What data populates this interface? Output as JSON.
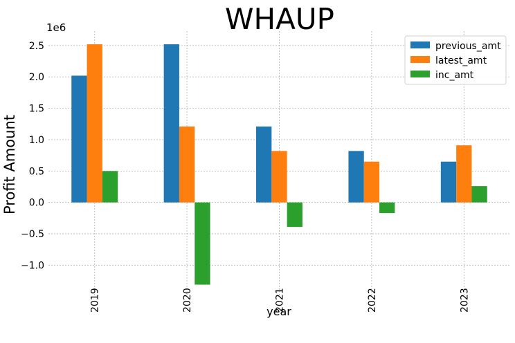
{
  "chart_data": {
    "type": "bar",
    "title": "WHAUP",
    "xlabel": "year",
    "ylabel": "Profit Amount",
    "y_offset_label": "1e6",
    "categories": [
      "2019",
      "2020",
      "2021",
      "2022",
      "2023"
    ],
    "series": [
      {
        "name": "previous_amt",
        "color": "#1f77b4",
        "values": [
          2020000,
          2520000,
          1210000,
          820000,
          650000
        ]
      },
      {
        "name": "latest_amt",
        "color": "#ff7f0e",
        "values": [
          2520000,
          1210000,
          820000,
          650000,
          910000
        ]
      },
      {
        "name": "inc_amt",
        "color": "#2ca02c",
        "values": [
          500000,
          -1310000,
          -390000,
          -170000,
          260000
        ]
      }
    ],
    "ylim": [
      -1.48,
      2.73
    ],
    "y_scale_divisor": 1000000,
    "yticks": [
      -1.0,
      -0.5,
      0.0,
      0.5,
      1.0,
      1.5,
      2.0,
      2.5
    ],
    "ytick_labels": [
      "−1.0",
      "−0.5",
      "0.0",
      "0.5",
      "1.0",
      "1.5",
      "2.0",
      "2.5"
    ],
    "grid": true,
    "legend_position": "top-right"
  }
}
